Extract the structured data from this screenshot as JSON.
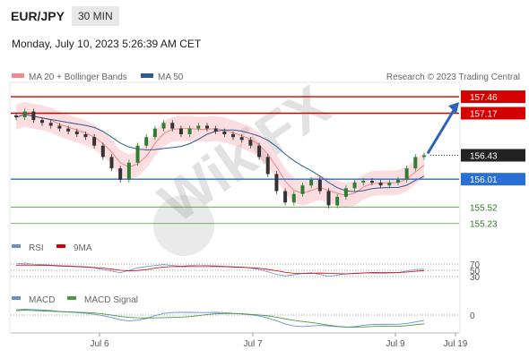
{
  "header": {
    "pair": "EUR/JPY",
    "timeframe": "30 MIN",
    "datetime": "Monday, July 10, 2023 5:26:39 AM CET"
  },
  "legend": {
    "ma20_label": "MA 20 + Bollinger Bands",
    "ma50_label": "MA 50",
    "credit": "Research © 2023 Trading Central",
    "ma20_color": "#f08a8a",
    "ma50_color": "#2f5a94"
  },
  "watermark": "WikiFX",
  "chart_data": [
    {
      "type": "candlestick",
      "title": "",
      "ylim": [
        155.1,
        157.65
      ],
      "x_labels": [
        "Jul 6",
        "Jul 7",
        "Jul 9",
        "Jul 19"
      ],
      "levels": [
        {
          "value": 157.46,
          "label": "157.46",
          "color": "#d40000",
          "kind": "resistance"
        },
        {
          "value": 157.17,
          "label": "157.17",
          "color": "#d40000",
          "kind": "resistance"
        },
        {
          "value": 156.43,
          "label": "156.43",
          "color": "#333333",
          "kind": "last-price"
        },
        {
          "value": 156.01,
          "label": "156.01",
          "color": "#2a6fd6",
          "kind": "pivot"
        },
        {
          "value": 155.52,
          "label": "155.52",
          "color": "#4a9a3a",
          "kind": "support"
        },
        {
          "value": 155.23,
          "label": "155.23",
          "color": "#4a9a3a",
          "kind": "support"
        }
      ],
      "close_path": [
        157.1,
        157.2,
        157.05,
        157.0,
        156.95,
        156.9,
        156.85,
        156.8,
        156.75,
        156.6,
        156.4,
        156.2,
        156.0,
        156.3,
        156.6,
        156.75,
        156.9,
        157.0,
        156.9,
        156.8,
        156.9,
        156.95,
        156.9,
        156.85,
        156.8,
        156.75,
        156.7,
        156.6,
        156.4,
        156.1,
        155.8,
        155.6,
        155.75,
        155.9,
        156.0,
        155.8,
        155.55,
        155.7,
        155.85,
        155.95,
        155.98,
        155.95,
        155.9,
        155.95,
        156.0,
        156.2,
        156.4,
        156.43
      ],
      "arrow": {
        "from": 156.43,
        "to": 157.46
      }
    },
    {
      "type": "line",
      "title": "RSI",
      "series": [
        {
          "name": "RSI"
        },
        {
          "name": "9MA"
        }
      ],
      "levels": [
        "70",
        "50",
        "30"
      ]
    },
    {
      "type": "line",
      "title": "MACD",
      "series": [
        {
          "name": "MACD"
        },
        {
          "name": "MACD Signal"
        }
      ],
      "levels": [
        "0"
      ]
    }
  ]
}
